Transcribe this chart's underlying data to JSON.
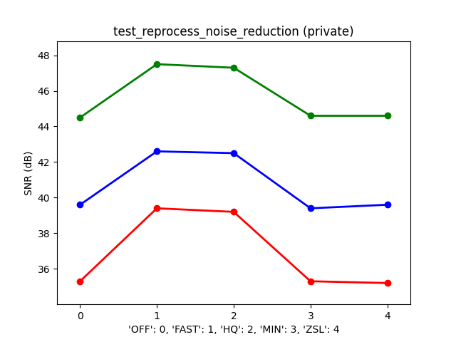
{
  "title": "test_reprocess_noise_reduction (private)",
  "xlabel": "'OFF': 0, 'FAST': 1, 'HQ': 2, 'MIN': 3, 'ZSL': 4",
  "ylabel": "SNR (dB)",
  "x": [
    0,
    1,
    2,
    3,
    4
  ],
  "series": [
    {
      "color": "green",
      "values": [
        44.5,
        47.5,
        47.3,
        44.6,
        44.6
      ]
    },
    {
      "color": "blue",
      "values": [
        39.6,
        42.6,
        42.5,
        39.4,
        39.6
      ]
    },
    {
      "color": "red",
      "values": [
        35.3,
        39.4,
        39.2,
        35.3,
        35.2
      ]
    }
  ],
  "ylim": [
    34.0,
    48.8
  ],
  "yticks": [
    36,
    38,
    40,
    42,
    44,
    46,
    48
  ],
  "xticks": [
    0,
    1,
    2,
    3,
    4
  ],
  "marker": "o",
  "markersize": 6,
  "linewidth": 2,
  "title_fontsize": 12,
  "label_fontsize": 10,
  "tick_fontsize": 10
}
